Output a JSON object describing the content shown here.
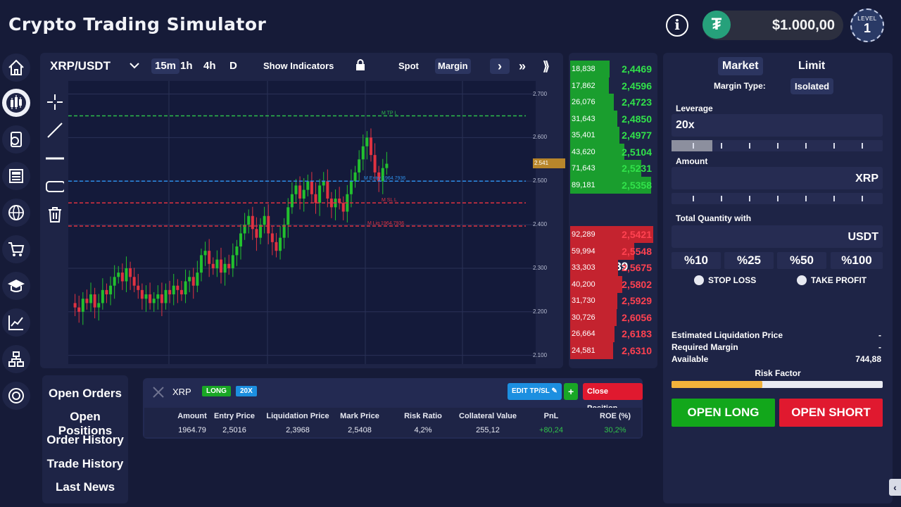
{
  "app": {
    "title": "Crypto Trading Simulator"
  },
  "header": {
    "info_icon": "i",
    "balance": "$1.000,00",
    "level_label": "LEVEL",
    "level_value": "1",
    "colors": {
      "tether": "#26a17b",
      "balance_bg": "#2c2f3f"
    }
  },
  "sidebar": {
    "items": [
      {
        "name": "home-icon"
      },
      {
        "name": "candlestick-icon"
      },
      {
        "name": "portfolio-icon"
      },
      {
        "name": "news-icon"
      },
      {
        "name": "globe-icon"
      },
      {
        "name": "cart-icon"
      },
      {
        "name": "graduation-cap-icon"
      },
      {
        "name": "analytics-icon"
      },
      {
        "name": "organization-icon"
      },
      {
        "name": "crypto-coin-icon"
      }
    ]
  },
  "chart_toolbar": {
    "pair": "XRP/USDT",
    "timeframes": [
      "15m",
      "1h",
      "4h",
      "D"
    ],
    "selected_timeframe": "15m",
    "show_indicators": "Show Indicators",
    "spot": "Spot",
    "margin": "Margin",
    "next": "›",
    "skip": "»",
    "fast": "⟫"
  },
  "chart_data": {
    "type": "candlestick",
    "price_axis_ticks": [
      "2.700",
      "2.600",
      "2.500",
      "2.400",
      "2.300",
      "2.200",
      "2.100"
    ],
    "current_price_tag": "2.541",
    "lines": [
      {
        "label": "M TP L",
        "value": 2.65,
        "color": "#2ebd4a"
      },
      {
        "label": "M Entry 1964.7936",
        "value": 2.5,
        "color": "#2d8ee8"
      },
      {
        "label": "M SL L",
        "value": 2.45,
        "color": "#e03241"
      },
      {
        "label": "M Liq 1964.7936",
        "value": 2.397,
        "color": "#e03241"
      }
    ],
    "ylim": [
      2.08,
      2.73
    ],
    "colors": {
      "up": "#22c02e",
      "down": "#e03241"
    }
  },
  "order_book": {
    "asks": [
      {
        "volume": "18,838",
        "price": "2,4469"
      },
      {
        "volume": "17,862",
        "price": "2,4596"
      },
      {
        "volume": "26,076",
        "price": "2,4723"
      },
      {
        "volume": "31,643",
        "price": "2,4850"
      },
      {
        "volume": "35,401",
        "price": "2,4977"
      },
      {
        "volume": "43,620",
        "price": "2,5104"
      },
      {
        "volume": "71,643",
        "price": "2,5231"
      },
      {
        "volume": "89,181",
        "price": "2,5358"
      }
    ],
    "last_price": "2,539",
    "bids": [
      {
        "volume": "92,289",
        "price": "2,5421"
      },
      {
        "volume": "59,994",
        "price": "2,5548"
      },
      {
        "volume": "33,303",
        "price": "2,5675"
      },
      {
        "volume": "40,200",
        "price": "2,5802"
      },
      {
        "volume": "31,730",
        "price": "2,5929"
      },
      {
        "volume": "30,726",
        "price": "2,6056"
      },
      {
        "volume": "26,664",
        "price": "2,6183"
      },
      {
        "volume": "24,581",
        "price": "2,6310"
      }
    ],
    "colors": {
      "green": "#1a9e2e",
      "red": "#c4232f",
      "green_text": "#31e24a",
      "red_text": "#ff4150"
    }
  },
  "order_form": {
    "tabs": [
      "Market",
      "Limit"
    ],
    "margin_type_label": "Margin Type:",
    "margin_type_value": "Isolated",
    "leverage_label": "Leverage",
    "leverage_value": "20x",
    "amount_label": "Amount",
    "amount_unit": "XRP",
    "total_label": "Total Quantity with",
    "total_unit": "USDT",
    "percent_buttons": [
      "%10",
      "%25",
      "%50",
      "%100"
    ],
    "stop_loss": "STOP LOSS",
    "take_profit": "TAKE PROFIT",
    "est_liq_label": "Estimated Liquidation Price",
    "est_liq_value": "-",
    "req_margin_label": "Required Margin",
    "req_margin_value": "-",
    "available_label": "Available",
    "available_value": "744,88",
    "risk_label": "Risk Factor",
    "risk_fraction": 0.43,
    "open_long": "OPEN LONG",
    "open_short": "OPEN SHORT",
    "colors": {
      "long": "#12a71b",
      "short": "#e0192f",
      "risk_fill": "#f2b23a"
    }
  },
  "bottom_nav": {
    "items": [
      "Open Orders",
      "Open Positions",
      "Order History",
      "Trade History",
      "Last News"
    ]
  },
  "position": {
    "symbol": "XRP",
    "side": "LONG",
    "leverage": "20X",
    "edit_btn": "EDIT TP/SL",
    "add_btn": "+",
    "close_btn": "Close Position",
    "headers": [
      "Amount",
      "Entry Price",
      "Liquidation Price",
      "Mark Price",
      "Risk Ratio",
      "Collateral Value",
      "PnL",
      "ROE (%)"
    ],
    "values": [
      "1964.79",
      "2,5016",
      "2,3968",
      "2,5408",
      "4,2%",
      "255,12",
      "+80,24",
      "30,2%"
    ]
  },
  "collapse": "‹"
}
